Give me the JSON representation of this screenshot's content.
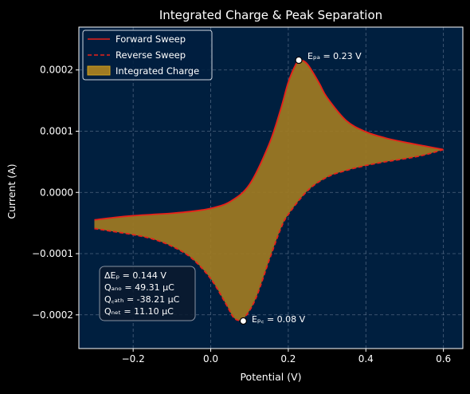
{
  "chart_data": {
    "type": "line",
    "title": "Integrated Charge & Peak Separation",
    "xlabel": "Potential (V)",
    "ylabel": "Current (A)",
    "xlim": [
      -0.34,
      0.65
    ],
    "ylim": [
      -0.000255,
      0.00027
    ],
    "x_ticks": [
      -0.2,
      0.0,
      0.2,
      0.4,
      0.6
    ],
    "x_tick_labels": [
      "−0.2",
      "0.0",
      "0.2",
      "0.4",
      "0.6"
    ],
    "y_ticks": [
      -0.0002,
      -0.0001,
      0.0,
      0.0001,
      0.0002
    ],
    "y_tick_labels": [
      "−0.0002",
      "−0.0001",
      "0.0000",
      "0.0001",
      "0.0002"
    ],
    "grid": true,
    "legend_position": "top-left",
    "colors": {
      "figure_bg": "#000000",
      "axes_bg": "#001f3f",
      "line": "#e8211a",
      "fill": "#a07b22",
      "text": "#ffffff",
      "grid": "#8a9bb3"
    },
    "series": [
      {
        "name": "Forward Sweep",
        "style": "solid",
        "x": [
          -0.3,
          -0.25,
          -0.2,
          -0.15,
          -0.1,
          -0.05,
          0.0,
          0.05,
          0.1,
          0.15,
          0.18,
          0.2,
          0.22,
          0.23,
          0.25,
          0.28,
          0.3,
          0.35,
          0.4,
          0.45,
          0.5,
          0.55,
          0.6
        ],
        "y": [
          -4.5e-05,
          -4.1e-05,
          -3.8e-05,
          -3.6e-05,
          -3.4e-05,
          -3.1e-05,
          -2.6e-05,
          -1.5e-05,
          1.3e-05,
          7.8e-05,
          0.000135,
          0.00018,
          0.00021,
          0.000216,
          0.000209,
          0.000178,
          0.000155,
          0.000117,
          9.9e-05,
          8.9e-05,
          8.2e-05,
          7.6e-05,
          7e-05
        ]
      },
      {
        "name": "Reverse Sweep",
        "style": "dashed",
        "x": [
          0.6,
          0.55,
          0.5,
          0.45,
          0.4,
          0.35,
          0.3,
          0.25,
          0.2,
          0.18,
          0.15,
          0.12,
          0.1,
          0.08,
          0.06,
          0.04,
          0.0,
          -0.05,
          -0.1,
          -0.15,
          -0.2,
          -0.25,
          -0.3
        ],
        "y": [
          7e-05,
          6.1e-05,
          5.5e-05,
          5e-05,
          4.4e-05,
          3.6e-05,
          2.5e-05,
          3e-06,
          -3.6e-05,
          -6e-05,
          -0.000112,
          -0.000167,
          -0.000193,
          -0.000208,
          -0.000205,
          -0.000183,
          -0.000141,
          -0.000107,
          -8.8e-05,
          -7.6e-05,
          -6.9e-05,
          -6.4e-05,
          -5.9e-05
        ]
      }
    ],
    "fill_label": "Integrated Charge",
    "peaks": [
      {
        "x": 0.227,
        "y": 0.000216,
        "label": "Eₚₐ = 0.23 V"
      },
      {
        "x": 0.084,
        "y": -0.00021,
        "label": "Eₚ꜀ = 0.08 V"
      }
    ],
    "annotation_lines": [
      "ΔEₚ = 0.144 V",
      "Qₐₙₒ = 49.31 μC",
      "Q꜀ₐₜₕ = -38.21 μC",
      "Qₙₑₜ = 11.10 μC"
    ]
  }
}
